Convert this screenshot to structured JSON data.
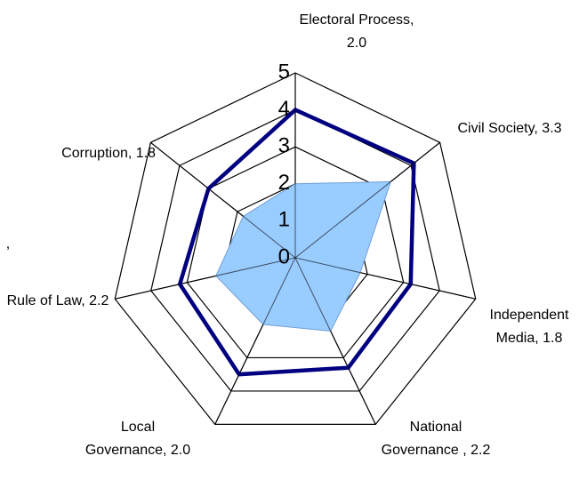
{
  "chart_data": {
    "type": "radar",
    "categories": [
      "Electoral Process, 2.0",
      "Civil Society, 3.3",
      "Independent Media, 1.8",
      "National Governance , 2.2",
      "Local Governance, 2.0",
      "Rule of Law, 2.2",
      "Corruption, 1.8"
    ],
    "series": [
      {
        "color": "#99ccff",
        "fill": true,
        "values": [
          2.0,
          3.3,
          1.8,
          2.2,
          2.0,
          2.2,
          1.8
        ]
      },
      {
        "color": "#000080",
        "fill": false,
        "values": [
          4.0,
          4.1,
          3.2,
          3.3,
          3.5,
          3.2,
          3.0
        ]
      }
    ],
    "ylim": [
      0,
      5
    ],
    "yticks": [
      0,
      1,
      2,
      3,
      4,
      5
    ],
    "grid": true,
    "annotations": [
      ","
    ]
  }
}
